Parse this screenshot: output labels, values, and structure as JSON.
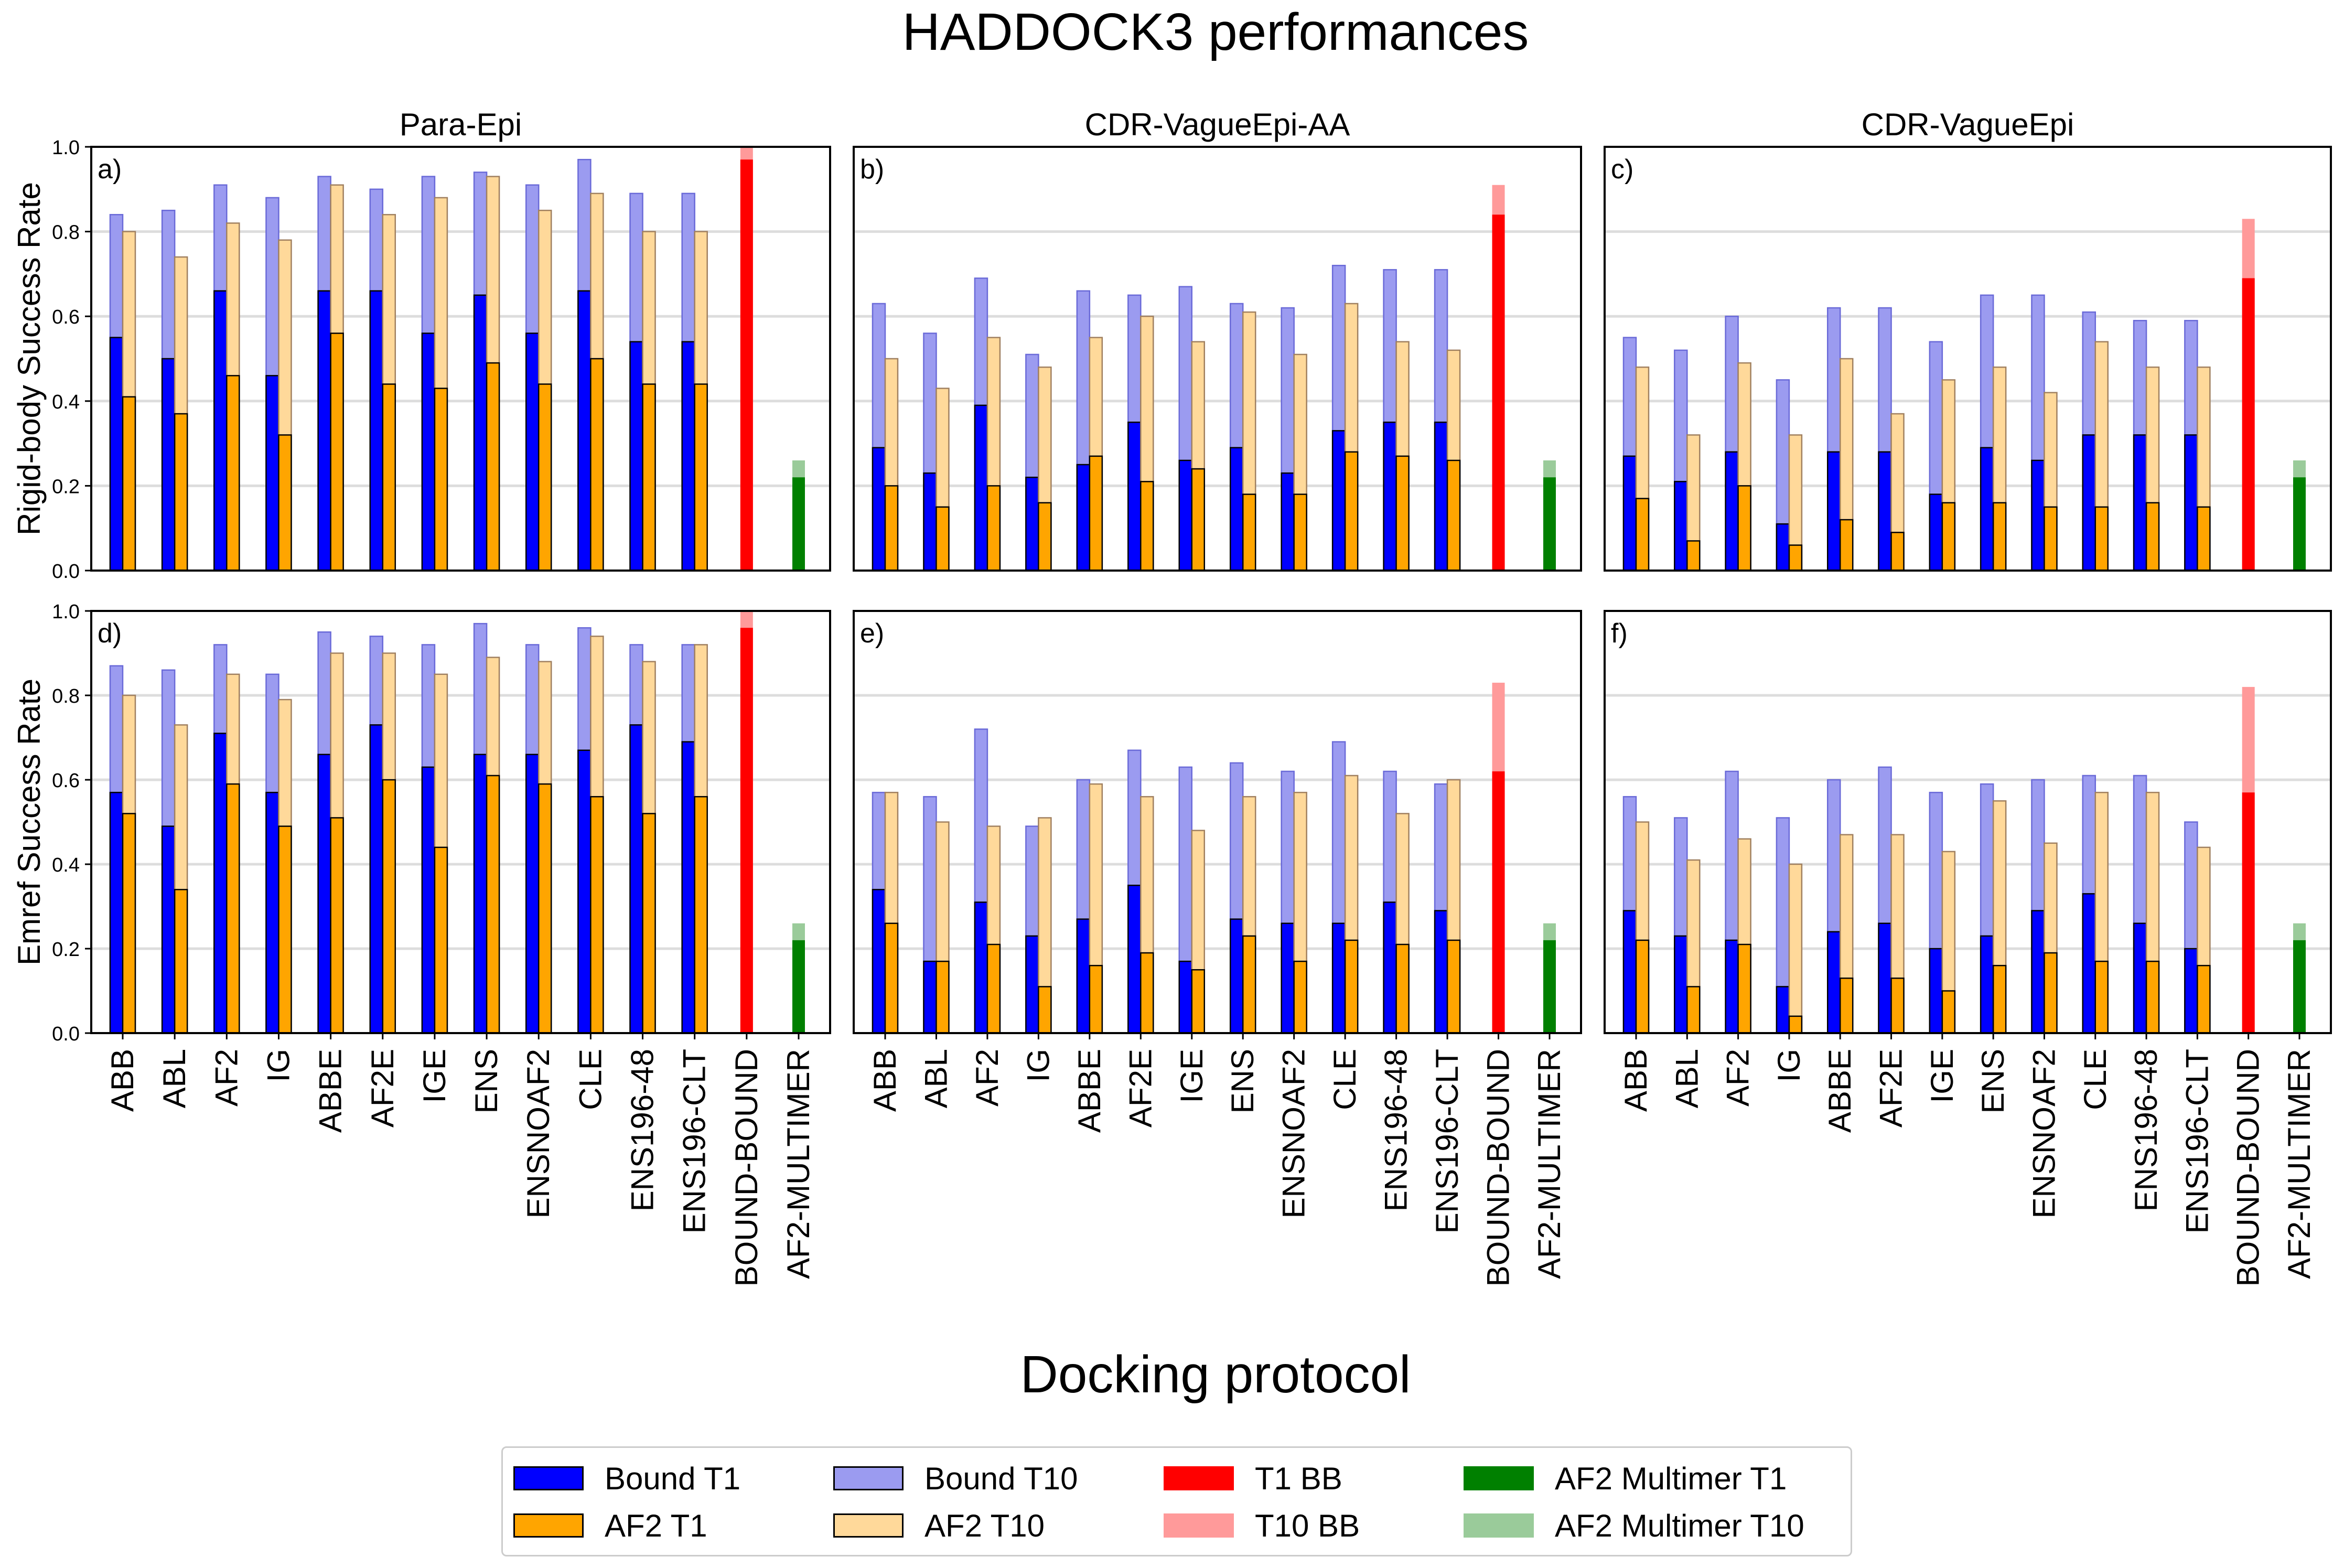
{
  "title": "HADDOCK3 performances",
  "xlabel": "Docking protocol",
  "colors": {
    "bound_t1": "#0000ff",
    "bound_t10": "#9b9bf0",
    "af2_t1": "#ffa500",
    "af2_t10": "#ffd99a",
    "bb_t1": "#ff0000",
    "bb_t10": "#ff9a9a",
    "mult_t1": "#008000",
    "mult_t10": "#9acb9a"
  },
  "legend": [
    {
      "label": "Bound T1",
      "color": "#0000ff",
      "edge": true
    },
    {
      "label": "AF2 T1",
      "color": "#ffa500",
      "edge": true
    },
    {
      "label": "Bound T10",
      "color": "#9b9bf0",
      "edge": true
    },
    {
      "label": "AF2 T10",
      "color": "#ffd99a",
      "edge": true
    },
    {
      "label": "T1 BB",
      "color": "#ff0000",
      "edge": false
    },
    {
      "label": "T10 BB",
      "color": "#ff9a9a",
      "edge": false
    },
    {
      "label": "AF2 Multimer T1",
      "color": "#008000",
      "edge": false
    },
    {
      "label": "AF2 Multimer T10",
      "color": "#9acb9a",
      "edge": false
    }
  ],
  "chart_data": [
    {
      "type": "bar",
      "panel": "a)",
      "column_title": "Para-Epi",
      "ylabel": "Rigid-body Success Rate",
      "ylim": [
        0,
        1.0
      ],
      "yticks": [
        "0.0",
        "0.2",
        "0.4",
        "0.6",
        "0.8",
        "1.0"
      ],
      "grid": true,
      "categories": [
        "ABB",
        "ABL",
        "AF2",
        "IG",
        "ABBE",
        "AF2E",
        "IGE",
        "ENS",
        "ENSNOAF2",
        "CLE",
        "ENS196-48",
        "ENS196-CLT"
      ],
      "series": [
        {
          "name": "Bound T1",
          "values": [
            0.55,
            0.5,
            0.66,
            0.46,
            0.66,
            0.66,
            0.56,
            0.65,
            0.56,
            0.66,
            0.54,
            0.54
          ]
        },
        {
          "name": "Bound T10",
          "values": [
            0.84,
            0.85,
            0.91,
            0.88,
            0.93,
            0.9,
            0.93,
            0.94,
            0.91,
            0.97,
            0.89,
            0.89
          ]
        },
        {
          "name": "AF2 T1",
          "values": [
            0.41,
            0.37,
            0.46,
            0.32,
            0.56,
            0.44,
            0.43,
            0.49,
            0.44,
            0.5,
            0.44,
            0.44
          ]
        },
        {
          "name": "AF2 T10",
          "values": [
            0.8,
            0.74,
            0.82,
            0.78,
            0.91,
            0.84,
            0.88,
            0.93,
            0.85,
            0.89,
            0.8,
            0.8
          ]
        }
      ],
      "extra": [
        {
          "category": "BOUND-BOUND",
          "name": "T1 BB",
          "t1": 0.97,
          "t10": 1.0
        },
        {
          "category": "AF2-MULTIMER",
          "name": "AF2 Multimer",
          "t1": 0.22,
          "t10": 0.26
        }
      ]
    },
    {
      "type": "bar",
      "panel": "b)",
      "column_title": "CDR-VagueEpi-AA",
      "ylabel": "",
      "ylim": [
        0,
        1.0
      ],
      "grid": true,
      "categories": [
        "ABB",
        "ABL",
        "AF2",
        "IG",
        "ABBE",
        "AF2E",
        "IGE",
        "ENS",
        "ENSNOAF2",
        "CLE",
        "ENS196-48",
        "ENS196-CLT"
      ],
      "series": [
        {
          "name": "Bound T1",
          "values": [
            0.29,
            0.23,
            0.39,
            0.22,
            0.25,
            0.35,
            0.26,
            0.29,
            0.23,
            0.33,
            0.35,
            0.35
          ]
        },
        {
          "name": "Bound T10",
          "values": [
            0.63,
            0.56,
            0.69,
            0.51,
            0.66,
            0.65,
            0.67,
            0.63,
            0.62,
            0.72,
            0.71,
            0.71
          ]
        },
        {
          "name": "AF2 T1",
          "values": [
            0.2,
            0.15,
            0.2,
            0.16,
            0.27,
            0.21,
            0.24,
            0.18,
            0.18,
            0.28,
            0.27,
            0.26
          ]
        },
        {
          "name": "AF2 T10",
          "values": [
            0.5,
            0.43,
            0.55,
            0.48,
            0.55,
            0.6,
            0.54,
            0.61,
            0.51,
            0.63,
            0.54,
            0.52
          ]
        }
      ],
      "extra": [
        {
          "category": "BOUND-BOUND",
          "name": "T1 BB",
          "t1": 0.84,
          "t10": 0.91
        },
        {
          "category": "AF2-MULTIMER",
          "name": "AF2 Multimer",
          "t1": 0.22,
          "t10": 0.26
        }
      ]
    },
    {
      "type": "bar",
      "panel": "c)",
      "column_title": "CDR-VagueEpi",
      "ylabel": "",
      "ylim": [
        0,
        1.0
      ],
      "grid": true,
      "categories": [
        "ABB",
        "ABL",
        "AF2",
        "IG",
        "ABBE",
        "AF2E",
        "IGE",
        "ENS",
        "ENSNOAF2",
        "CLE",
        "ENS196-48",
        "ENS196-CLT"
      ],
      "series": [
        {
          "name": "Bound T1",
          "values": [
            0.27,
            0.21,
            0.28,
            0.11,
            0.28,
            0.28,
            0.18,
            0.29,
            0.26,
            0.32,
            0.32,
            0.32
          ]
        },
        {
          "name": "Bound T10",
          "values": [
            0.55,
            0.52,
            0.6,
            0.45,
            0.62,
            0.62,
            0.54,
            0.65,
            0.65,
            0.61,
            0.59,
            0.59
          ]
        },
        {
          "name": "AF2 T1",
          "values": [
            0.17,
            0.07,
            0.2,
            0.06,
            0.12,
            0.09,
            0.16,
            0.16,
            0.15,
            0.15,
            0.16,
            0.15
          ]
        },
        {
          "name": "AF2 T10",
          "values": [
            0.48,
            0.32,
            0.49,
            0.32,
            0.5,
            0.37,
            0.45,
            0.48,
            0.42,
            0.54,
            0.48,
            0.48
          ]
        }
      ],
      "extra": [
        {
          "category": "BOUND-BOUND",
          "name": "T1 BB",
          "t1": 0.69,
          "t10": 0.83
        },
        {
          "category": "AF2-MULTIMER",
          "name": "AF2 Multimer",
          "t1": 0.22,
          "t10": 0.26
        }
      ]
    },
    {
      "type": "bar",
      "panel": "d)",
      "column_title": "",
      "ylabel": "Emref Success Rate",
      "ylim": [
        0,
        1.0
      ],
      "yticks": [
        "0.0",
        "0.2",
        "0.4",
        "0.6",
        "0.8",
        "1.0"
      ],
      "grid": true,
      "categories": [
        "ABB",
        "ABL",
        "AF2",
        "IG",
        "ABBE",
        "AF2E",
        "IGE",
        "ENS",
        "ENSNOAF2",
        "CLE",
        "ENS196-48",
        "ENS196-CLT"
      ],
      "series": [
        {
          "name": "Bound T1",
          "values": [
            0.57,
            0.49,
            0.71,
            0.57,
            0.66,
            0.73,
            0.63,
            0.66,
            0.66,
            0.67,
            0.73,
            0.69
          ]
        },
        {
          "name": "Bound T10",
          "values": [
            0.87,
            0.86,
            0.92,
            0.85,
            0.95,
            0.94,
            0.92,
            0.97,
            0.92,
            0.96,
            0.92,
            0.92
          ]
        },
        {
          "name": "AF2 T1",
          "values": [
            0.52,
            0.34,
            0.59,
            0.49,
            0.51,
            0.6,
            0.44,
            0.61,
            0.59,
            0.56,
            0.52,
            0.56
          ]
        },
        {
          "name": "AF2 T10",
          "values": [
            0.8,
            0.73,
            0.85,
            0.79,
            0.9,
            0.9,
            0.85,
            0.89,
            0.88,
            0.94,
            0.88,
            0.92
          ]
        }
      ],
      "extra": [
        {
          "category": "BOUND-BOUND",
          "name": "T1 BB",
          "t1": 0.96,
          "t10": 1.0
        },
        {
          "category": "AF2-MULTIMER",
          "name": "AF2 Multimer",
          "t1": 0.22,
          "t10": 0.26
        }
      ]
    },
    {
      "type": "bar",
      "panel": "e)",
      "column_title": "",
      "ylabel": "",
      "ylim": [
        0,
        1.0
      ],
      "grid": true,
      "categories": [
        "ABB",
        "ABL",
        "AF2",
        "IG",
        "ABBE",
        "AF2E",
        "IGE",
        "ENS",
        "ENSNOAF2",
        "CLE",
        "ENS196-48",
        "ENS196-CLT"
      ],
      "series": [
        {
          "name": "Bound T1",
          "values": [
            0.34,
            0.17,
            0.31,
            0.23,
            0.27,
            0.35,
            0.17,
            0.27,
            0.26,
            0.26,
            0.31,
            0.29
          ]
        },
        {
          "name": "Bound T10",
          "values": [
            0.57,
            0.56,
            0.72,
            0.49,
            0.6,
            0.67,
            0.63,
            0.64,
            0.62,
            0.69,
            0.62,
            0.59
          ]
        },
        {
          "name": "AF2 T1",
          "values": [
            0.26,
            0.17,
            0.21,
            0.11,
            0.16,
            0.19,
            0.15,
            0.23,
            0.17,
            0.22,
            0.21,
            0.22
          ]
        },
        {
          "name": "AF2 T10",
          "values": [
            0.57,
            0.5,
            0.49,
            0.51,
            0.59,
            0.56,
            0.48,
            0.56,
            0.57,
            0.61,
            0.52,
            0.6
          ]
        }
      ],
      "extra": [
        {
          "category": "BOUND-BOUND",
          "name": "T1 BB",
          "t1": 0.62,
          "t10": 0.83
        },
        {
          "category": "AF2-MULTIMER",
          "name": "AF2 Multimer",
          "t1": 0.22,
          "t10": 0.26
        }
      ]
    },
    {
      "type": "bar",
      "panel": "f)",
      "column_title": "",
      "ylabel": "",
      "ylim": [
        0,
        1.0
      ],
      "grid": true,
      "categories": [
        "ABB",
        "ABL",
        "AF2",
        "IG",
        "ABBE",
        "AF2E",
        "IGE",
        "ENS",
        "ENSNOAF2",
        "CLE",
        "ENS196-48",
        "ENS196-CLT"
      ],
      "series": [
        {
          "name": "Bound T1",
          "values": [
            0.29,
            0.23,
            0.22,
            0.11,
            0.24,
            0.26,
            0.2,
            0.23,
            0.29,
            0.33,
            0.26,
            0.2
          ]
        },
        {
          "name": "Bound T10",
          "values": [
            0.56,
            0.51,
            0.62,
            0.51,
            0.6,
            0.63,
            0.57,
            0.59,
            0.6,
            0.61,
            0.61,
            0.5
          ]
        },
        {
          "name": "AF2 T1",
          "values": [
            0.22,
            0.11,
            0.21,
            0.04,
            0.13,
            0.13,
            0.1,
            0.16,
            0.19,
            0.17,
            0.17,
            0.16
          ]
        },
        {
          "name": "AF2 T10",
          "values": [
            0.5,
            0.41,
            0.46,
            0.4,
            0.47,
            0.47,
            0.43,
            0.55,
            0.45,
            0.57,
            0.57,
            0.44
          ]
        }
      ],
      "extra": [
        {
          "category": "BOUND-BOUND",
          "name": "T1 BB",
          "t1": 0.57,
          "t10": 0.82
        },
        {
          "category": "AF2-MULTIMER",
          "name": "AF2 Multimer",
          "t1": 0.22,
          "t10": 0.26
        }
      ]
    }
  ]
}
